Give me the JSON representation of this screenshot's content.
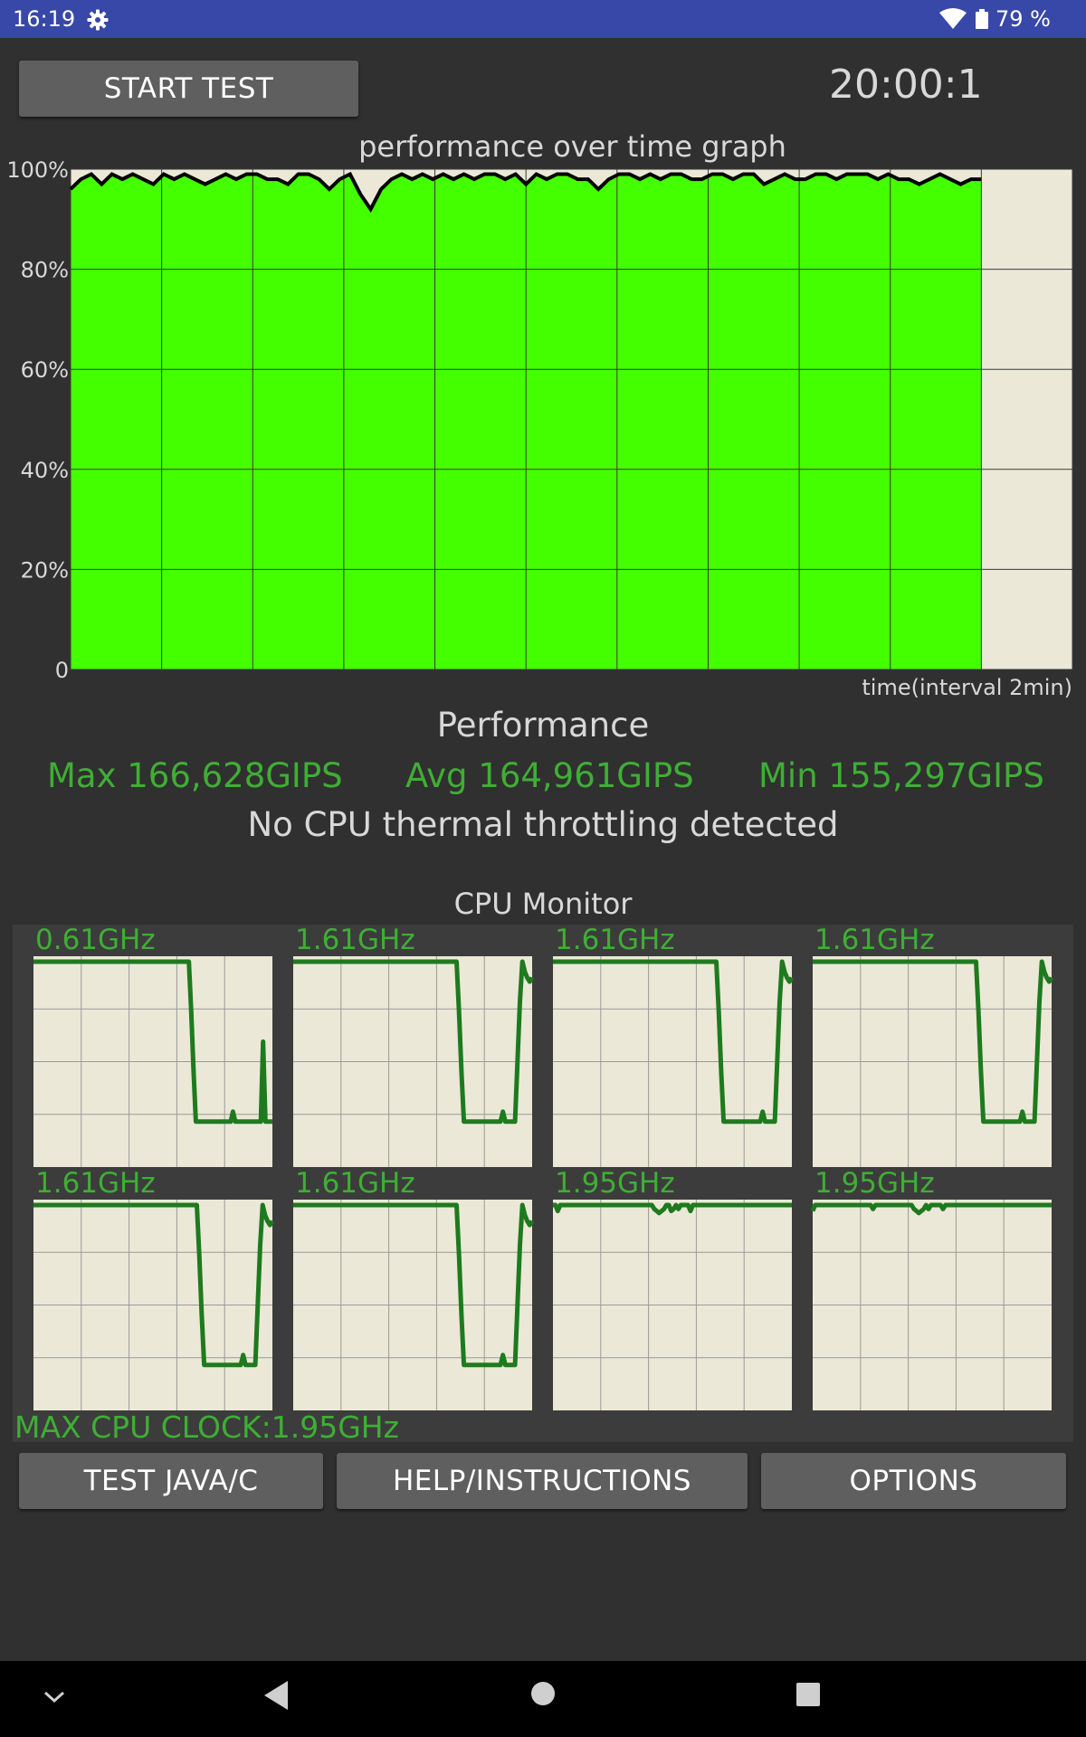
{
  "status_bar": {
    "time": "16:19",
    "battery_text": "79 %",
    "icons": [
      "gear-icon",
      "wifi-icon",
      "battery-icon"
    ]
  },
  "toolbar": {
    "start_test_label": "START TEST",
    "timer": "20:00:1"
  },
  "graph": {
    "title": "performance over time graph",
    "xlabel": "time(interval 2min)"
  },
  "chart_data": {
    "type": "area",
    "title": "performance over time graph",
    "xlabel": "time(interval 2min)",
    "ylabel": "",
    "ylim": [
      0,
      100
    ],
    "y_ticks": [
      "0",
      "20%",
      "40%",
      "60%",
      "80%",
      "100%"
    ],
    "x_intervals": 11,
    "filled_intervals": 10,
    "fill_color": "#44ff00",
    "line_color": "#000000",
    "background_color": "#ebe8d7",
    "grid": true,
    "series": [
      {
        "values": [
          96,
          98,
          99,
          97,
          99,
          98,
          99,
          98,
          97,
          99,
          98,
          99,
          98,
          97,
          98,
          99,
          98,
          99,
          99,
          98,
          98,
          97,
          99,
          99,
          98,
          96,
          98,
          99,
          95,
          92,
          96,
          98,
          99,
          98,
          99,
          98,
          99,
          98,
          99,
          98,
          99,
          99,
          98,
          99,
          97,
          99,
          98,
          99,
          99,
          98,
          98,
          96,
          98,
          99,
          99,
          98,
          99,
          98,
          99,
          99,
          98,
          98,
          99,
          99,
          98,
          99,
          99,
          97,
          98,
          99,
          98,
          98,
          99,
          99,
          98,
          99,
          99,
          99,
          98,
          99,
          98,
          98,
          97,
          98,
          99,
          98,
          97,
          98,
          98
        ]
      }
    ]
  },
  "performance": {
    "heading": "Performance",
    "max": "Max 166,628GIPS",
    "avg": "Avg 164,961GIPS",
    "min": "Min 155,297GIPS",
    "throttling": "No CPU thermal throttling detected"
  },
  "cpu_monitor": {
    "heading": "CPU Monitor",
    "max_clock": "MAX CPU CLOCK:1.95GHz",
    "line_color": "#1e7a1e",
    "cores": [
      {
        "label": "0.61GHz",
        "values": [
          100,
          100,
          100,
          100,
          100,
          100,
          100,
          100,
          100,
          100,
          100,
          100,
          100,
          100,
          100,
          100,
          100,
          100,
          100,
          100,
          100,
          100,
          100,
          100,
          100,
          100,
          100,
          100,
          100,
          100,
          100,
          100,
          100,
          100,
          100,
          100,
          100,
          100,
          100,
          100,
          100,
          100,
          100,
          100,
          100,
          100,
          100,
          100,
          100,
          100,
          100,
          100,
          100,
          100,
          100,
          100,
          100,
          100,
          100,
          100,
          100,
          100,
          100,
          100,
          100,
          100,
          100,
          100,
          75,
          45,
          20,
          20,
          20,
          20,
          20,
          20,
          20,
          20,
          20,
          20,
          20,
          20,
          20,
          20,
          20,
          20,
          25,
          20,
          20,
          20,
          20,
          20,
          20,
          20,
          20,
          20,
          20,
          20,
          20,
          60,
          20,
          20,
          20,
          20
        ]
      },
      {
        "label": "1.61GHz",
        "values": [
          100,
          100,
          100,
          100,
          100,
          100,
          100,
          100,
          100,
          100,
          100,
          100,
          100,
          100,
          100,
          100,
          100,
          100,
          100,
          100,
          100,
          100,
          100,
          100,
          100,
          100,
          100,
          100,
          100,
          100,
          100,
          100,
          100,
          100,
          100,
          100,
          100,
          100,
          100,
          100,
          100,
          100,
          100,
          100,
          100,
          100,
          100,
          100,
          100,
          100,
          100,
          100,
          100,
          100,
          100,
          100,
          100,
          100,
          100,
          100,
          100,
          100,
          100,
          100,
          100,
          100,
          100,
          100,
          75,
          45,
          20,
          20,
          20,
          20,
          20,
          20,
          20,
          20,
          20,
          20,
          20,
          20,
          20,
          20,
          20,
          20,
          25,
          20,
          20,
          20,
          20,
          20,
          50,
          80,
          100,
          95,
          92,
          90,
          92
        ]
      },
      {
        "label": "1.61GHz",
        "values": [
          100,
          100,
          100,
          100,
          100,
          100,
          100,
          100,
          100,
          100,
          100,
          100,
          100,
          100,
          100,
          100,
          100,
          100,
          100,
          100,
          100,
          100,
          100,
          100,
          100,
          100,
          100,
          100,
          100,
          100,
          100,
          100,
          100,
          100,
          100,
          100,
          100,
          100,
          100,
          100,
          100,
          100,
          100,
          100,
          100,
          100,
          100,
          100,
          100,
          100,
          100,
          100,
          100,
          100,
          100,
          100,
          100,
          100,
          100,
          100,
          100,
          100,
          100,
          100,
          100,
          100,
          100,
          100,
          75,
          45,
          20,
          20,
          20,
          20,
          20,
          20,
          20,
          20,
          20,
          20,
          20,
          20,
          20,
          20,
          20,
          20,
          25,
          20,
          20,
          20,
          20,
          20,
          50,
          80,
          100,
          95,
          92,
          90,
          92
        ]
      },
      {
        "label": "1.61GHz",
        "values": [
          100,
          100,
          100,
          100,
          100,
          100,
          100,
          100,
          100,
          100,
          100,
          100,
          100,
          100,
          100,
          100,
          100,
          100,
          100,
          100,
          100,
          100,
          100,
          100,
          100,
          100,
          100,
          100,
          100,
          100,
          100,
          100,
          100,
          100,
          100,
          100,
          100,
          100,
          100,
          100,
          100,
          100,
          100,
          100,
          100,
          100,
          100,
          100,
          100,
          100,
          100,
          100,
          100,
          100,
          100,
          100,
          100,
          100,
          100,
          100,
          100,
          100,
          100,
          100,
          100,
          100,
          100,
          100,
          75,
          45,
          20,
          20,
          20,
          20,
          20,
          20,
          20,
          20,
          20,
          20,
          20,
          20,
          20,
          20,
          20,
          20,
          25,
          20,
          20,
          20,
          20,
          20,
          50,
          80,
          100,
          95,
          92,
          90,
          92
        ]
      },
      {
        "label": "1.61GHz",
        "values": [
          100,
          100,
          100,
          100,
          100,
          100,
          100,
          100,
          100,
          100,
          100,
          100,
          100,
          100,
          100,
          100,
          100,
          100,
          100,
          100,
          100,
          100,
          100,
          100,
          100,
          100,
          100,
          100,
          100,
          100,
          100,
          100,
          100,
          100,
          100,
          100,
          100,
          100,
          100,
          100,
          100,
          100,
          100,
          100,
          100,
          100,
          100,
          100,
          100,
          100,
          100,
          100,
          100,
          100,
          100,
          100,
          100,
          100,
          100,
          100,
          100,
          100,
          100,
          100,
          100,
          100,
          100,
          100,
          75,
          45,
          20,
          20,
          20,
          20,
          20,
          20,
          20,
          20,
          20,
          20,
          20,
          20,
          20,
          20,
          20,
          20,
          25,
          20,
          20,
          20,
          20,
          20,
          50,
          80,
          100,
          95,
          92,
          90,
          92
        ]
      },
      {
        "label": "1.61GHz",
        "values": [
          100,
          100,
          100,
          100,
          100,
          100,
          100,
          100,
          100,
          100,
          100,
          100,
          100,
          100,
          100,
          100,
          100,
          100,
          100,
          100,
          100,
          100,
          100,
          100,
          100,
          100,
          100,
          100,
          100,
          100,
          100,
          100,
          100,
          100,
          100,
          100,
          100,
          100,
          100,
          100,
          100,
          100,
          100,
          100,
          100,
          100,
          100,
          100,
          100,
          100,
          100,
          100,
          100,
          100,
          100,
          100,
          100,
          100,
          100,
          100,
          100,
          100,
          100,
          100,
          100,
          100,
          100,
          100,
          75,
          45,
          20,
          20,
          20,
          20,
          20,
          20,
          20,
          20,
          20,
          20,
          20,
          20,
          20,
          20,
          20,
          20,
          25,
          20,
          20,
          20,
          20,
          20,
          50,
          80,
          100,
          95,
          92,
          90,
          92
        ]
      },
      {
        "label": "1.95GHz",
        "values": [
          100,
          100,
          97,
          100,
          100,
          100,
          100,
          100,
          100,
          100,
          100,
          100,
          100,
          100,
          100,
          100,
          100,
          100,
          100,
          100,
          100,
          100,
          100,
          100,
          100,
          100,
          100,
          100,
          100,
          100,
          100,
          100,
          100,
          100,
          100,
          100,
          100,
          100,
          100,
          100,
          100,
          100,
          98,
          97,
          96,
          97,
          98,
          100,
          100,
          97,
          98,
          100,
          98,
          100,
          100,
          100,
          100,
          97,
          100,
          100,
          100,
          100,
          100,
          100,
          100,
          100,
          100,
          100,
          100,
          100,
          100,
          100,
          100,
          100,
          100,
          100,
          100,
          100,
          100,
          100,
          100,
          100,
          100,
          100,
          100,
          100,
          100,
          100,
          100,
          100,
          100,
          100,
          100,
          100,
          100,
          100,
          100,
          100,
          100,
          100
        ]
      },
      {
        "label": "1.95GHz",
        "values": [
          97,
          100,
          100,
          100,
          100,
          100,
          100,
          100,
          100,
          100,
          100,
          100,
          100,
          100,
          100,
          100,
          100,
          100,
          100,
          100,
          100,
          100,
          100,
          100,
          100,
          98,
          100,
          100,
          100,
          100,
          100,
          100,
          100,
          100,
          100,
          100,
          100,
          100,
          100,
          100,
          100,
          100,
          98,
          97,
          96,
          97,
          98,
          100,
          98,
          100,
          100,
          100,
          100,
          100,
          98,
          100,
          100,
          100,
          100,
          100,
          100,
          100,
          100,
          100,
          100,
          100,
          100,
          100,
          100,
          100,
          100,
          100,
          100,
          100,
          100,
          100,
          100,
          100,
          100,
          100,
          100,
          100,
          100,
          100,
          100,
          100,
          100,
          100,
          100,
          100,
          100,
          100,
          100,
          100,
          100,
          100,
          100,
          100,
          100,
          100
        ]
      }
    ]
  },
  "bottom_buttons": {
    "test_java_c": "TEST JAVA/C",
    "help": "HELP/INSTRUCTIONS",
    "options": "OPTIONS"
  },
  "nav_bar": {
    "icons": [
      "chevron-down-icon",
      "back-icon",
      "home-icon",
      "recents-icon"
    ]
  }
}
